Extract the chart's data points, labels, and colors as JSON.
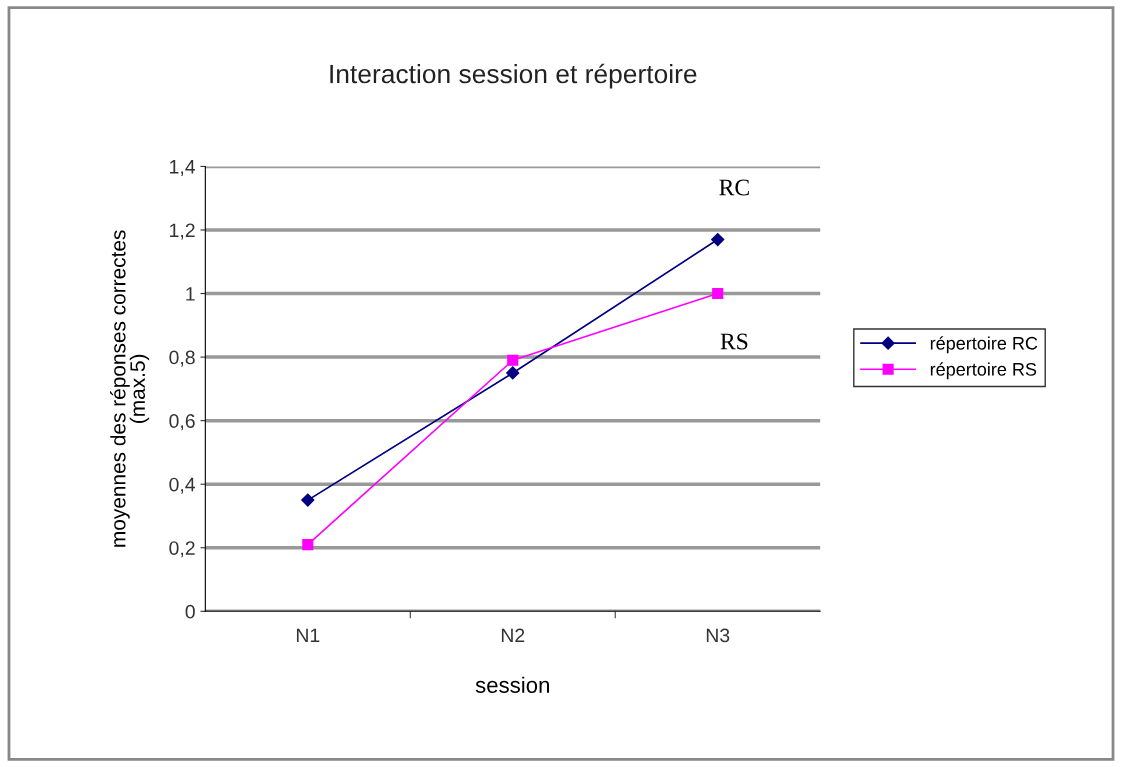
{
  "chart_data": {
    "type": "line",
    "title": "Interaction session et répertoire",
    "xlabel": "session",
    "ylabel": "moyennes des réponses correctes\n(max.5)",
    "categories": [
      "N1",
      "N2",
      "N3"
    ],
    "series": [
      {
        "name": "répertoire RC",
        "color": "#000080",
        "marker": "diamond",
        "values": [
          0.35,
          0.75,
          1.17
        ]
      },
      {
        "name": "répertoire RS",
        "color": "#ff00ff",
        "marker": "square",
        "values": [
          0.21,
          0.79,
          1.0
        ]
      }
    ],
    "ylim": [
      0,
      1.4
    ],
    "yticks": [
      0,
      {
        "value": 0.2,
        "label": "0,2"
      },
      {
        "value": 0.4,
        "label": "0,4"
      },
      {
        "value": 0.6,
        "label": "0,6"
      },
      {
        "value": 0.8,
        "label": "0,8"
      },
      1,
      {
        "value": 1.2,
        "label": "1,2"
      },
      {
        "value": 1.4,
        "label": "1,4"
      }
    ],
    "grid": "y",
    "legend": "right",
    "line_style": "solid",
    "annotations": [
      "RC",
      "RS"
    ]
  }
}
